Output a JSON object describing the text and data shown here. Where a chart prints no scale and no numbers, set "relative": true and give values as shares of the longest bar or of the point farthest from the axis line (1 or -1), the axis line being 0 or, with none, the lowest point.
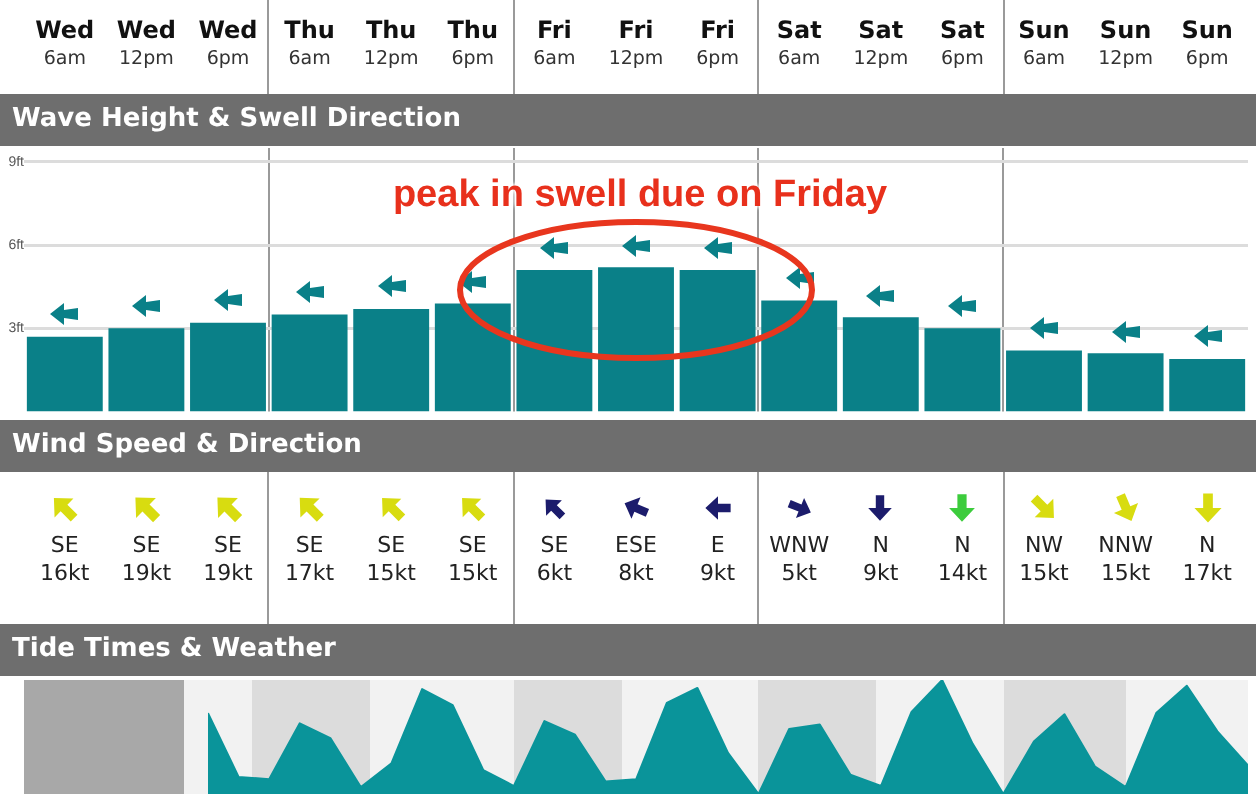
{
  "chart_data": [
    {
      "type": "bar",
      "title": "Wave Height & Swell Direction",
      "categories": [
        "Wed 6am",
        "Wed 12pm",
        "Wed 6pm",
        "Thu 6am",
        "Thu 12pm",
        "Thu 6pm",
        "Fri 6am",
        "Fri 12pm",
        "Fri 6pm",
        "Sat 6am",
        "Sat 12pm",
        "Sat 6pm",
        "Sun 6am",
        "Sun 12pm",
        "Sun 6pm"
      ],
      "values": [
        2.7,
        3.0,
        3.2,
        3.5,
        3.7,
        3.9,
        5.1,
        5.2,
        5.1,
        4.0,
        3.4,
        3.0,
        2.2,
        2.1,
        1.9
      ],
      "color": "#0a8088",
      "ylim": [
        0,
        9.5
      ],
      "yticks": [
        {
          "value": 3,
          "label": "3ft"
        },
        {
          "value": 6,
          "label": "6ft"
        },
        {
          "value": 9,
          "label": "9ft"
        }
      ],
      "grid": true,
      "annotations": [
        "peak in swell due on Friday"
      ]
    },
    {
      "type": "other",
      "title": "Wind Speed & Direction",
      "categories": [
        "SE",
        "SE",
        "SE",
        "SE",
        "SE",
        "SE",
        "SE",
        "ESE",
        "E",
        "WNW",
        "N",
        "N",
        "NW",
        "NNW",
        "N"
      ],
      "values": [
        16,
        19,
        19,
        17,
        15,
        15,
        6,
        8,
        9,
        5,
        9,
        14,
        15,
        15,
        17
      ],
      "value_labels": [
        "16kt",
        "19kt",
        "19kt",
        "17kt",
        "15kt",
        "15kt",
        "6kt",
        "8kt",
        "9kt",
        "5kt",
        "9kt",
        "14kt",
        "15kt",
        "15kt",
        "17kt"
      ],
      "colors": [
        "#d8dc10",
        "#d8dc10",
        "#d8dc10",
        "#d8dc10",
        "#d8dc10",
        "#d8dc10",
        "#1c1c6c",
        "#1c1c6c",
        "#1c1c6c",
        "#1c1c6c",
        "#1c1c6c",
        "#3ccc3c",
        "#d8dc10",
        "#d8dc10",
        "#d8dc10"
      ]
    },
    {
      "type": "area",
      "title": "Tide Times & Weather",
      "relative": true,
      "color": "#0a949a",
      "categories": [
        null,
        null,
        null,
        null,
        null,
        null,
        null,
        null,
        null,
        null,
        null,
        null,
        null,
        null,
        null,
        null,
        null,
        null,
        null,
        null,
        null,
        null,
        null,
        null,
        null,
        null,
        null,
        null,
        null,
        null,
        null,
        null,
        null,
        null,
        null
      ],
      "values": [
        0.71,
        0.15,
        0.13,
        0.62,
        0.49,
        0.06,
        0.27,
        0.92,
        0.78,
        0.21,
        0.07,
        0.64,
        0.52,
        0.11,
        0.13,
        0.8,
        0.93,
        0.36,
        0,
        0.57,
        0.61,
        0.17,
        0.07,
        0.72,
        1,
        0.44,
        0,
        0.46,
        0.7,
        0.24,
        0.06,
        0.71,
        0.95,
        0.55,
        0.25
      ]
    }
  ]
}
